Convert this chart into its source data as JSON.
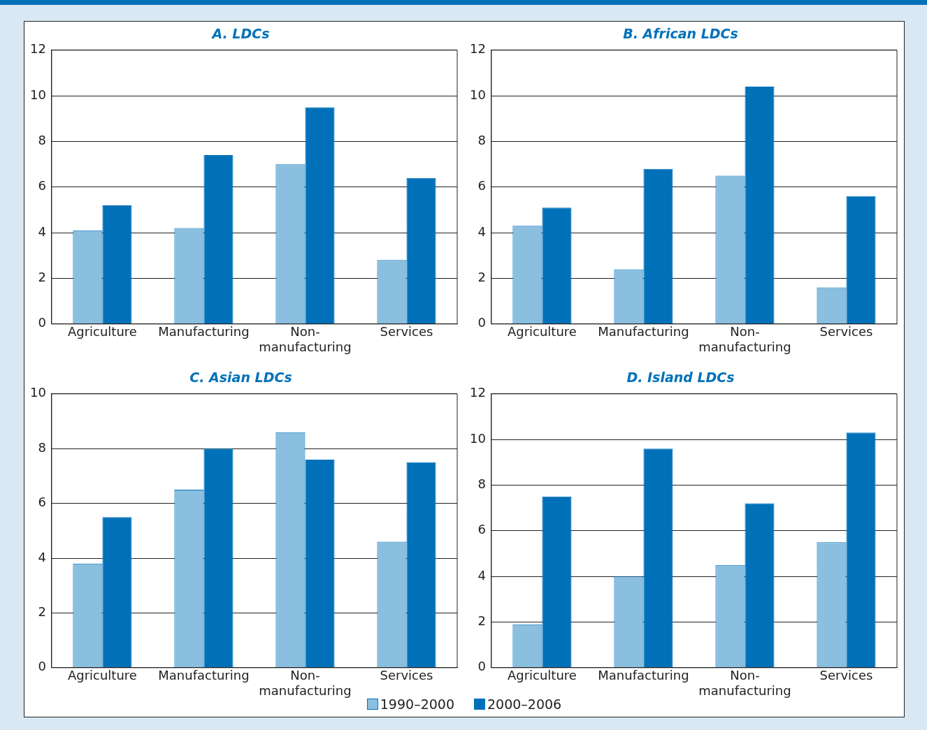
{
  "chart_data": [
    {
      "type": "bar",
      "title": "A. LDCs",
      "categories": [
        "Agriculture",
        "Manufacturing",
        "Non-manufacturing",
        "Services"
      ],
      "ylim": [
        0,
        12
      ],
      "yticks": [
        0,
        2,
        4,
        6,
        8,
        10,
        12
      ],
      "grid": "y",
      "legend": "bottom",
      "series": [
        {
          "name": "1990–2000",
          "color": "#8bbfdf",
          "values": [
            4.1,
            4.2,
            7.0,
            2.8
          ]
        },
        {
          "name": "2000–2006",
          "color": "#0071b9",
          "values": [
            5.2,
            7.4,
            9.5,
            6.4
          ]
        }
      ]
    },
    {
      "type": "bar",
      "title": "B. African LDCs",
      "categories": [
        "Agriculture",
        "Manufacturing",
        "Non-manufacturing",
        "Services"
      ],
      "ylim": [
        0,
        12
      ],
      "yticks": [
        0,
        2,
        4,
        6,
        8,
        10,
        12
      ],
      "grid": "y",
      "series": [
        {
          "color": "#8bbfdf",
          "values": [
            4.3,
            2.4,
            6.5,
            1.6
          ]
        },
        {
          "color": "#0071b9",
          "values": [
            5.1,
            6.8,
            10.4,
            5.6
          ]
        }
      ]
    },
    {
      "type": "bar",
      "title": "C. Asian LDCs",
      "categories": [
        "Agriculture",
        "Manufacturing",
        "Non-manufacturing",
        "Services"
      ],
      "ylim": [
        0,
        10
      ],
      "yticks": [
        0,
        2,
        4,
        6,
        8,
        10
      ],
      "grid": "y",
      "series": [
        {
          "color": "#8bbfdf",
          "values": [
            3.8,
            6.5,
            8.6,
            4.6
          ]
        },
        {
          "color": "#0071b9",
          "values": [
            5.5,
            8.0,
            7.6,
            7.5
          ]
        }
      ]
    },
    {
      "type": "bar",
      "title": "D. Island LDCs",
      "categories": [
        "Agriculture",
        "Manufacturing",
        "Non-manufacturing",
        "Services"
      ],
      "ylim": [
        0,
        12
      ],
      "yticks": [
        0,
        2,
        4,
        6,
        8,
        10,
        12
      ],
      "grid": "y",
      "series": [
        {
          "color": "#8bbfdf",
          "values": [
            1.9,
            4.0,
            4.5,
            5.5
          ]
        },
        {
          "color": "#0071b9",
          "values": [
            7.5,
            9.6,
            7.2,
            10.3
          ]
        }
      ]
    }
  ]
}
